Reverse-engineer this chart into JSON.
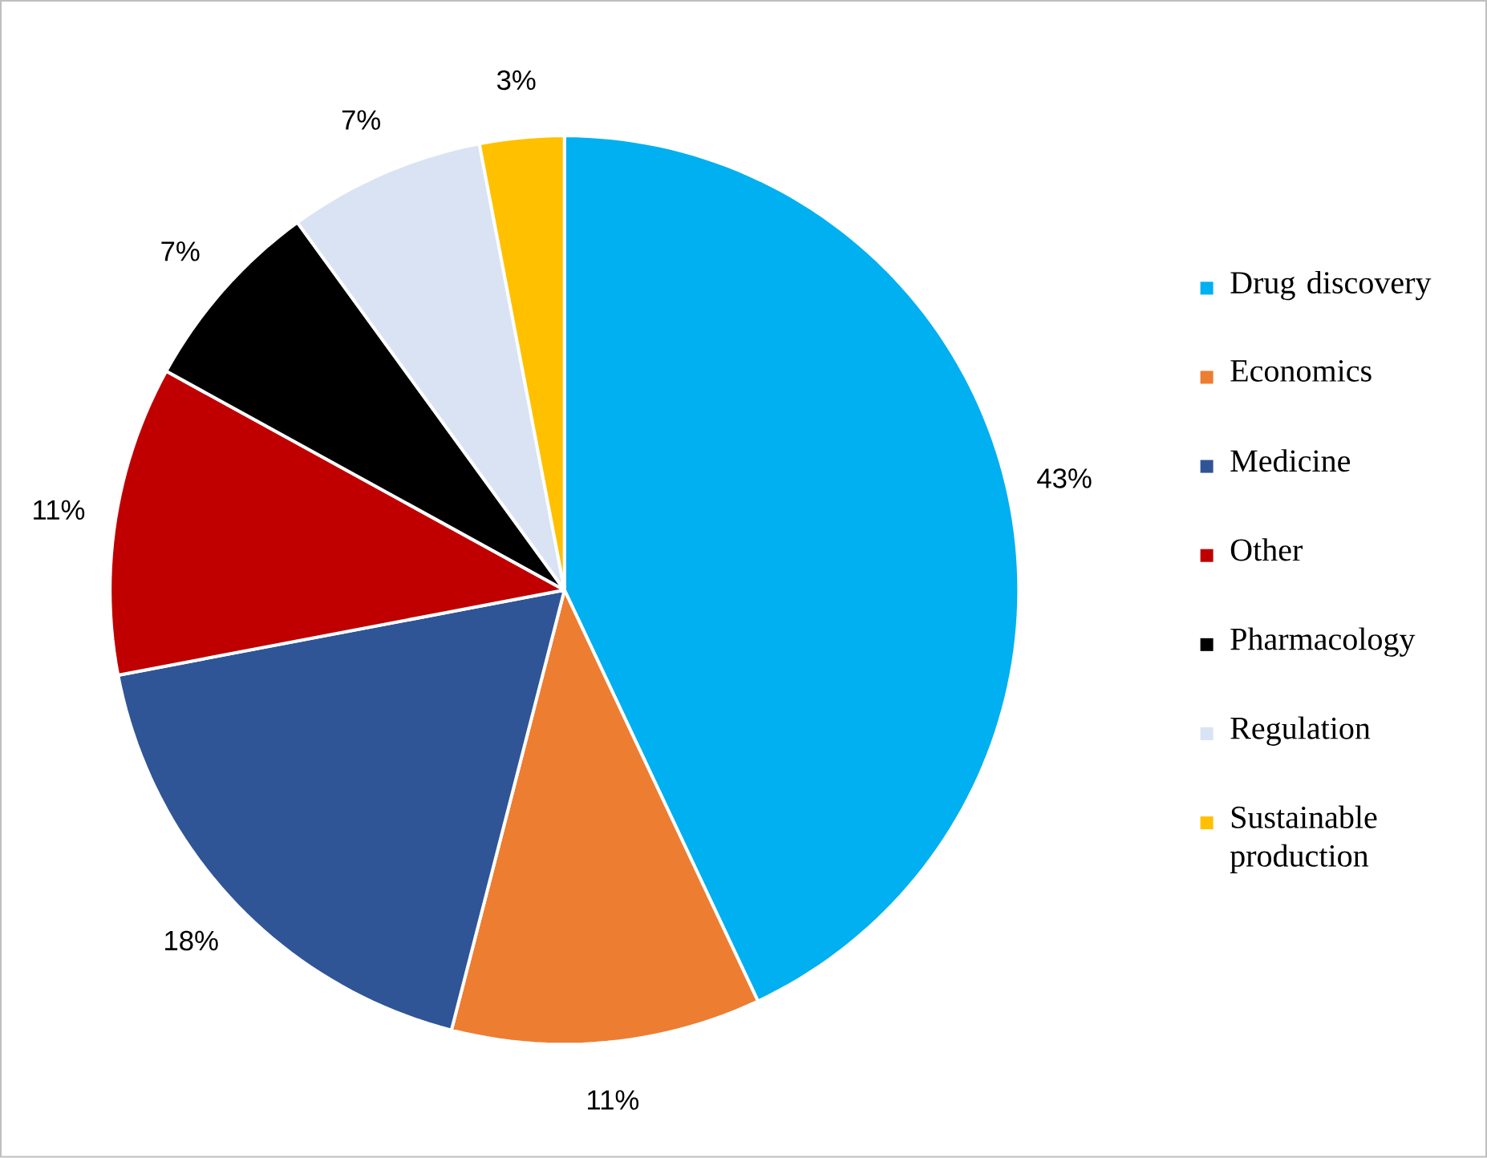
{
  "chart_data": {
    "type": "pie",
    "categories": [
      "Drug discovery",
      "Economics",
      "Medicine",
      "Other",
      "Pharmacology",
      "Regulation",
      "Sustainable production"
    ],
    "values": [
      43,
      11,
      18,
      11,
      7,
      7,
      3
    ],
    "value_labels": [
      "43%",
      "11%",
      "18%",
      "11%",
      "7%",
      "7%",
      "3%"
    ],
    "colors": [
      "#00b0f0",
      "#ed7d31",
      "#2f5597",
      "#c00000",
      "#000000",
      "#dae3f3",
      "#ffc000"
    ],
    "legend": "right"
  }
}
